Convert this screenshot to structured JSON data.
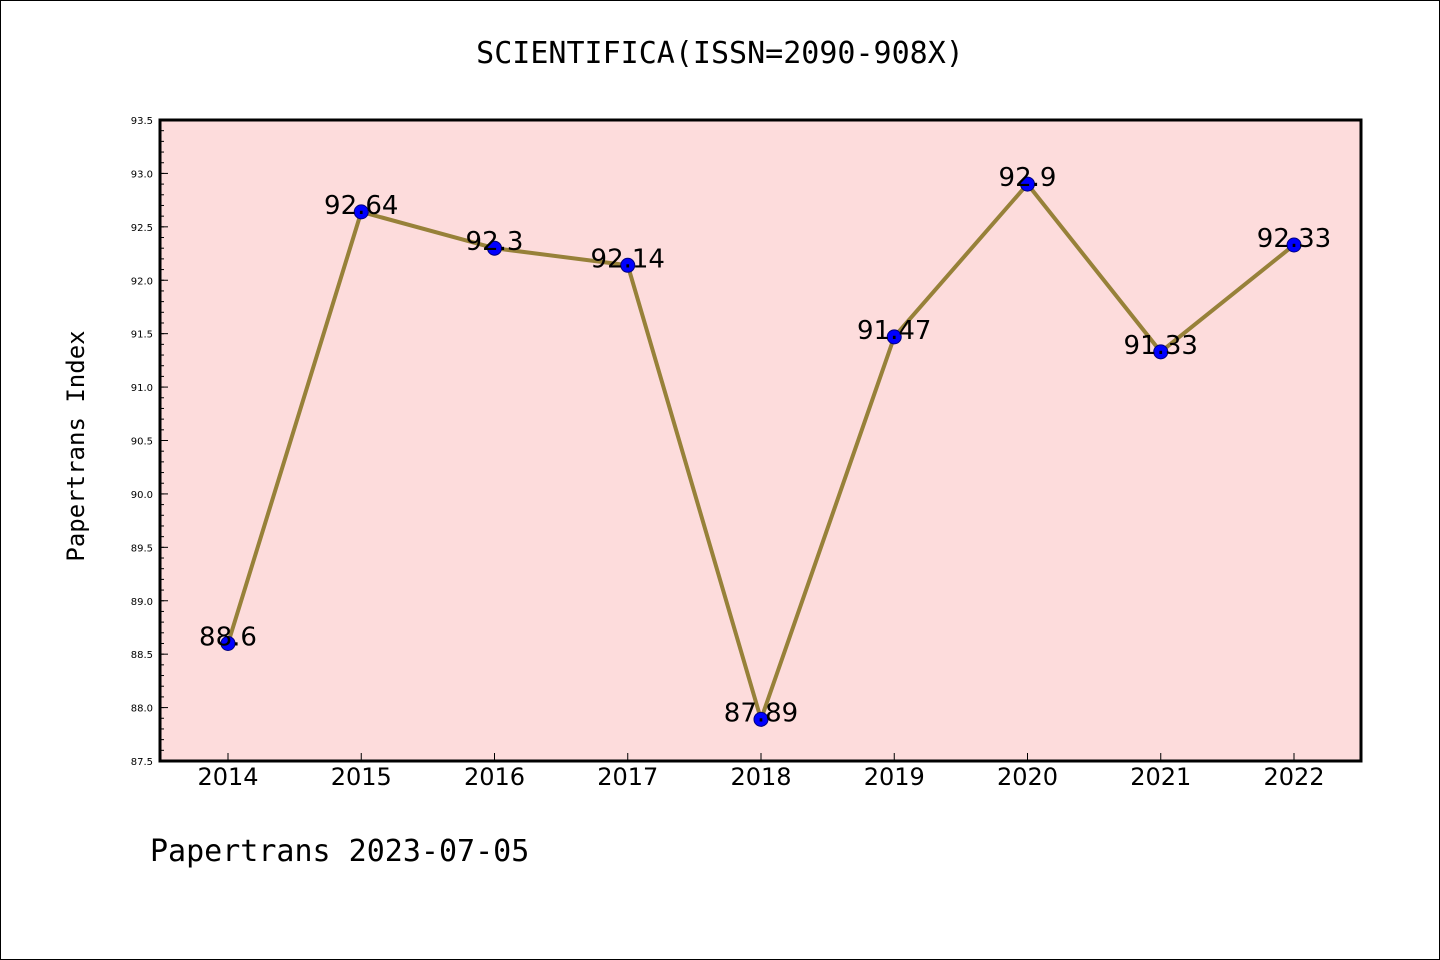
{
  "chart_data": {
    "type": "line",
    "title": "SCIENTIFICA(ISSN=2090-908X)",
    "ylabel": "Papertrans Index",
    "xlabel": "",
    "categories": [
      "2014",
      "2015",
      "2016",
      "2017",
      "2018",
      "2019",
      "2020",
      "2021",
      "2022"
    ],
    "values": [
      88.6,
      92.64,
      92.3,
      92.14,
      87.89,
      91.47,
      92.9,
      91.33,
      92.33
    ],
    "data_labels": [
      "88.6",
      "92.64",
      "92.3",
      "92.14",
      "87.89",
      "91.47",
      "92.9",
      "91.33",
      "92.33"
    ],
    "ylim": [
      87.5,
      93.5
    ],
    "yticks": [
      "87.5",
      "88.0",
      "88.5",
      "89.0",
      "89.5",
      "90.0",
      "90.5",
      "91.0",
      "91.5",
      "92.0",
      "92.5",
      "93.0",
      "93.5"
    ],
    "grid": false,
    "colors": {
      "plot_background": "#fddcdc",
      "line": "#978139",
      "marker": "#0000ff",
      "marker_edge": "#000080"
    }
  },
  "footer": {
    "text": "Papertrans 2023-07-05"
  }
}
